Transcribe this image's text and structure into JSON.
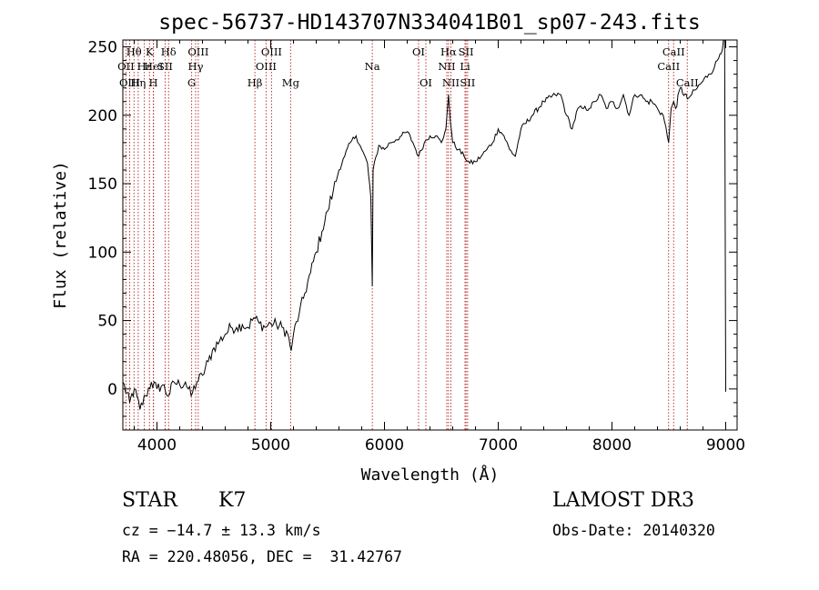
{
  "chart_data": {
    "type": "line",
    "title": "spec-56737-HD143707N334041B01_sp07-243.fits",
    "xlabel": "Wavelength (Å)",
    "ylabel": "Flux (relative)",
    "xlim": [
      3700,
      9100
    ],
    "ylim": [
      -30,
      255
    ],
    "xticks": [
      4000,
      5000,
      6000,
      7000,
      8000,
      9000
    ],
    "xtick_labels": [
      "4000",
      "5000",
      "6000",
      "7000",
      "8000",
      "9000"
    ],
    "yticks": [
      0,
      50,
      100,
      150,
      200,
      250
    ],
    "ytick_labels": [
      "0",
      "50",
      "100",
      "150",
      "200",
      "250"
    ],
    "series": [
      {
        "name": "flux",
        "x": [
          3700,
          3760,
          3800,
          3850,
          3900,
          3950,
          4000,
          4050,
          4100,
          4150,
          4200,
          4250,
          4300,
          4350,
          4400,
          4450,
          4500,
          4550,
          4600,
          4650,
          4700,
          4750,
          4800,
          4850,
          4900,
          4950,
          5000,
          5050,
          5100,
          5150,
          5180,
          5200,
          5250,
          5300,
          5350,
          5400,
          5450,
          5500,
          5550,
          5600,
          5650,
          5700,
          5750,
          5800,
          5850,
          5880,
          5893,
          5900,
          5950,
          6000,
          6050,
          6100,
          6150,
          6200,
          6250,
          6300,
          6350,
          6400,
          6450,
          6500,
          6540,
          6563,
          6580,
          6600,
          6650,
          6700,
          6750,
          6800,
          6850,
          6900,
          6950,
          7000,
          7050,
          7100,
          7150,
          7200,
          7300,
          7400,
          7500,
          7550,
          7600,
          7650,
          7700,
          7750,
          7800,
          7850,
          7900,
          7950,
          8000,
          8050,
          8100,
          8150,
          8200,
          8250,
          8300,
          8350,
          8400,
          8450,
          8498,
          8520,
          8542,
          8560,
          8600,
          8662,
          8700,
          8750,
          8800,
          8850,
          8900,
          8950,
          8990,
          9000
        ],
        "y": [
          5,
          -10,
          0,
          -15,
          -5,
          5,
          0,
          3,
          -5,
          5,
          3,
          5,
          -5,
          5,
          10,
          20,
          30,
          35,
          40,
          45,
          45,
          47,
          45,
          52,
          48,
          45,
          48,
          47,
          45,
          40,
          28,
          40,
          55,
          70,
          85,
          100,
          115,
          130,
          145,
          160,
          170,
          180,
          185,
          175,
          165,
          140,
          75,
          160,
          178,
          175,
          180,
          182,
          185,
          188,
          180,
          170,
          180,
          185,
          185,
          180,
          190,
          215,
          195,
          180,
          175,
          170,
          165,
          166,
          170,
          175,
          180,
          190,
          185,
          175,
          170,
          190,
          200,
          210,
          215,
          215,
          200,
          190,
          205,
          205,
          205,
          210,
          215,
          205,
          210,
          205,
          215,
          200,
          215,
          215,
          210,
          210,
          205,
          200,
          180,
          205,
          210,
          205,
          220,
          212,
          215,
          220,
          225,
          230,
          235,
          245,
          255,
          -2
        ]
      }
    ],
    "spectral_lines": [
      {
        "label": "Hθ",
        "wavelength": 3798,
        "row": 1
      },
      {
        "label": "OII",
        "wavelength": 3727,
        "row": 2
      },
      {
        "label": "OIII",
        "wavelength": 3760,
        "row": 3
      },
      {
        "label": "Hε",
        "wavelength": 3889,
        "row": 2
      },
      {
        "label": "K",
        "wavelength": 3934,
        "row": 1
      },
      {
        "label": "HeI",
        "wavelength": 3970,
        "row": 2
      },
      {
        "label": "Hη",
        "wavelength": 3835,
        "row": 3
      },
      {
        "label": "H",
        "wavelength": 3968,
        "row": 3
      },
      {
        "label": "Hδ",
        "wavelength": 4102,
        "row": 1
      },
      {
        "label": "SII",
        "wavelength": 4072,
        "row": 2
      },
      {
        "label": "OIII",
        "wavelength": 4363,
        "row": 1
      },
      {
        "label": "Hγ",
        "wavelength": 4340,
        "row": 2
      },
      {
        "label": "G",
        "wavelength": 4305,
        "row": 3
      },
      {
        "label": "OIII",
        "wavelength": 5007,
        "row": 1
      },
      {
        "label": "OIII",
        "wavelength": 4959,
        "row": 2
      },
      {
        "label": "Hβ",
        "wavelength": 4861,
        "row": 3
      },
      {
        "label": "Mg",
        "wavelength": 5175,
        "row": 3
      },
      {
        "label": "Na",
        "wavelength": 5893,
        "row": 2
      },
      {
        "label": "OI",
        "wavelength": 6300,
        "row": 1
      },
      {
        "label": "OI",
        "wavelength": 6364,
        "row": 3
      },
      {
        "label": "Hα",
        "wavelength": 6563,
        "row": 1
      },
      {
        "label": "SII",
        "wavelength": 6717,
        "row": 1
      },
      {
        "label": "NII",
        "wavelength": 6548,
        "row": 2
      },
      {
        "label": "Li",
        "wavelength": 6708,
        "row": 2
      },
      {
        "label": "NII",
        "wavelength": 6584,
        "row": 3
      },
      {
        "label": "SII",
        "wavelength": 6731,
        "row": 3
      },
      {
        "label": "CaII",
        "wavelength": 8542,
        "row": 1
      },
      {
        "label": "CaII",
        "wavelength": 8498,
        "row": 2
      },
      {
        "label": "CaII",
        "wavelength": 8662,
        "row": 3
      }
    ]
  },
  "info": {
    "object_class": "STAR",
    "subclass": "K7",
    "redshift": "cz = −14.7 ± 13.3 km/s",
    "coords": "RA = 220.48056, DEC =  31.42767",
    "survey": "LAMOST DR3",
    "obs_date": "Obs-Date: 20140320"
  },
  "colors": {
    "line_marker": "#b22222",
    "spectrum": "#000000",
    "axes": "#000000"
  }
}
